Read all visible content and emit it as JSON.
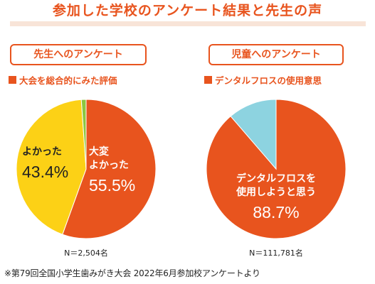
{
  "title": "参加した学校のアンケート結果と先生の声",
  "colors": {
    "accent": "#e8541e",
    "orange": "#e8541e",
    "yellow": "#fcd116",
    "green": "#8cc63f",
    "lightblue": "#8dd3e0"
  },
  "chart_data": [
    {
      "type": "pie",
      "panel_title": "先生へのアンケート",
      "subtitle": "大会を総合的にみた評価",
      "slices": [
        {
          "label": "大変よかった",
          "label_lines": [
            "大変",
            "よかった"
          ],
          "value": 55.5,
          "display": "55.5%",
          "color": "#e8541e"
        },
        {
          "label": "よかった",
          "label_lines": [
            "よかった"
          ],
          "value": 43.4,
          "display": "43.4%",
          "color": "#fcd116"
        },
        {
          "label": "",
          "label_lines": [],
          "value": 1.1,
          "display": "",
          "color": "#8cc63f"
        }
      ],
      "n": "N＝2,504名"
    },
    {
      "type": "pie",
      "panel_title": "児童へのアンケート",
      "subtitle": "デンタルフロスの使用意思",
      "slices": [
        {
          "label": "デンタルフロスを使用しようと思う",
          "label_lines": [
            "デンタルフロスを",
            "使用しようと思う"
          ],
          "value": 88.7,
          "display": "88.7%",
          "color": "#e8541e"
        },
        {
          "label": "",
          "label_lines": [],
          "value": 11.3,
          "display": "",
          "color": "#8dd3e0"
        }
      ],
      "n": "N＝111,781名"
    }
  ],
  "footnote": "※第79回全国小学生歯みがき大会 2022年6月参加校アンケートより"
}
